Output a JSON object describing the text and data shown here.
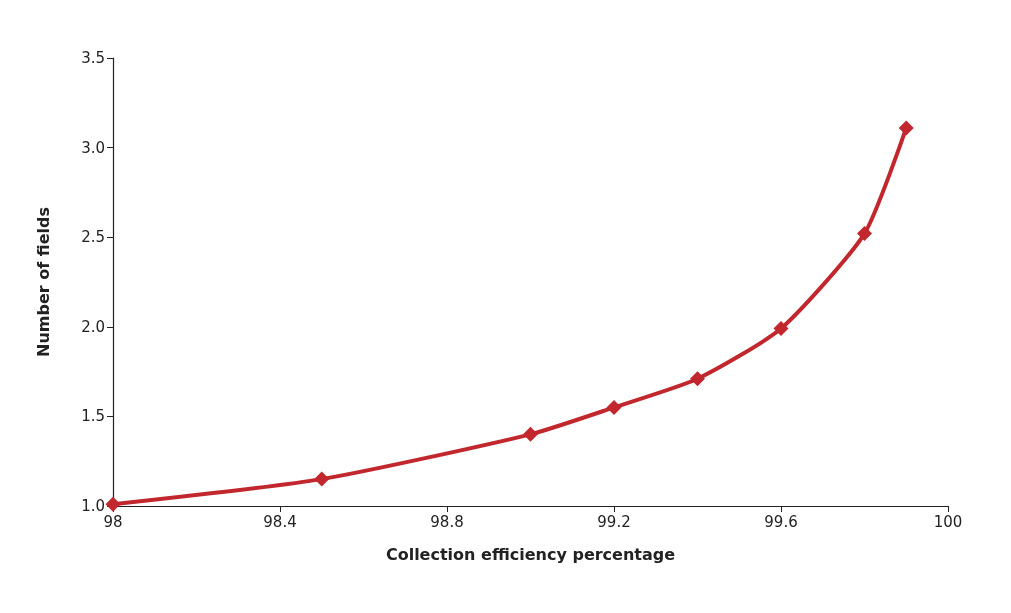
{
  "chart_data": {
    "type": "line",
    "xlabel": "Collection efficiency percentage",
    "ylabel": "Number of fields",
    "x": [
      98,
      98.5,
      99,
      99.2,
      99.4,
      99.6,
      99.8,
      99.9
    ],
    "series": [
      {
        "color": "#c1272d",
        "values": [
          1.01,
          1.15,
          1.4,
          1.55,
          1.71,
          1.99,
          2.52,
          3.11
        ]
      }
    ],
    "xlim": [
      98,
      100
    ],
    "xticks": [
      98,
      98.4,
      98.8,
      99.2,
      99.6,
      100
    ],
    "ylim": [
      1,
      3.5
    ],
    "yticks": [
      {
        "value": 1,
        "label": "1.0"
      },
      {
        "value": 1.5,
        "label": "1.5"
      },
      {
        "value": 2,
        "label": "2.0"
      },
      {
        "value": 2.5,
        "label": "2.5"
      },
      {
        "value": 3,
        "label": "3.0"
      },
      {
        "value": 3.5,
        "label": "3.5"
      }
    ],
    "grid": false,
    "marker": "diamond",
    "line_style": "solid"
  }
}
